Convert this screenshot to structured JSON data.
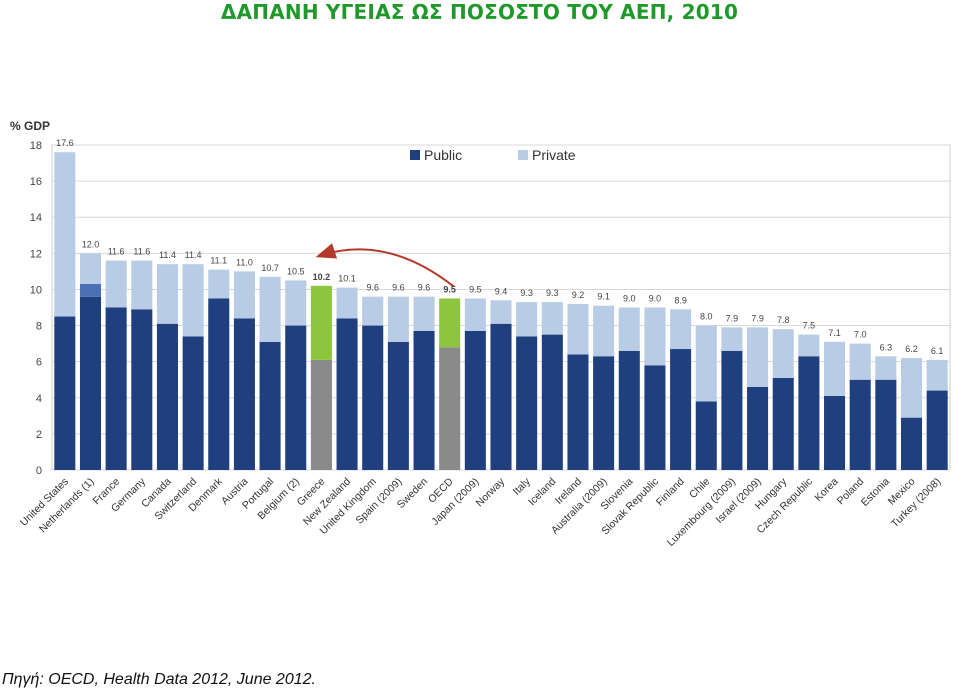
{
  "page": {
    "title": "ΔΑΠΑΝΗ ΥΓΕΙΑΣ ΩΣ ΠΟΣΟΣΤΟ ΤΟΥ ΑΕΠ, 2010",
    "source": "Πηγή: OECD, Health Data 2012, June 2012."
  },
  "colors": {
    "public": "#1f3f7f",
    "private": "#b9cce6",
    "highlight_public": "#8a8a8a",
    "highlight_private": "#8cc63f",
    "netherlands_unallocated": "#4a6fb5",
    "arrow": "#b33a2a",
    "grid": "#d9d9d9"
  },
  "chart_data": {
    "type": "bar",
    "stacked": true,
    "ylabel": "% GDP",
    "ylim": [
      0,
      18
    ],
    "yticks": [
      0,
      2,
      4,
      6,
      8,
      10,
      12,
      14,
      16,
      18
    ],
    "grid": true,
    "legend": {
      "position": "top-center",
      "entries": [
        "Public",
        "Private"
      ]
    },
    "highlighted": [
      "Greece",
      "OECD"
    ],
    "annotation": {
      "type": "arrow",
      "from": "OECD",
      "to": "Greece"
    },
    "categories": [
      "United States",
      "Netherlands (1)",
      "France",
      "Germany",
      "Canada",
      "Switzerland",
      "Denmark",
      "Austria",
      "Portugal",
      "Belgium (2)",
      "Greece",
      "New Zealand",
      "United Kingdom",
      "Spain (2009)",
      "Sweden",
      "OECD",
      "Japan (2009)",
      "Norway",
      "Italy",
      "Iceland",
      "Ireland",
      "Australia (2009)",
      "Slovenia",
      "Slovak Republic",
      "Finland",
      "Chile",
      "Luxembourg (2009)",
      "Israel (2009)",
      "Hungary",
      "Czech Republic",
      "Korea",
      "Poland",
      "Estonia",
      "Mexico",
      "Turkey (2008)"
    ],
    "totals": [
      17.6,
      12.0,
      11.6,
      11.6,
      11.4,
      11.4,
      11.1,
      11.0,
      10.7,
      10.5,
      10.2,
      10.1,
      9.6,
      9.6,
      9.6,
      9.5,
      9.5,
      9.4,
      9.3,
      9.3,
      9.2,
      9.1,
      9.0,
      9.0,
      8.9,
      8.0,
      7.9,
      7.9,
      7.8,
      7.5,
      7.1,
      7.0,
      6.3,
      6.2,
      6.1
    ],
    "total_labels": [
      "17.6",
      "12.0",
      "11.6",
      "11.6",
      "11.4",
      "11.4",
      "11.1",
      "11.0",
      "10.7",
      "10.5",
      "10.2",
      "10.1",
      "9.6",
      "9.6",
      "9.6",
      "9.5",
      "9.5",
      "9.4",
      "9.3",
      "9.3",
      "9.2",
      "9.1",
      "9.0",
      "9.0",
      "8.9",
      "8.0",
      "7.9",
      "7.9",
      "7.8",
      "7.5",
      "7.1",
      "7.0",
      "6.3",
      "6.2",
      "6.1"
    ],
    "series": [
      {
        "name": "Public",
        "values": [
          8.5,
          9.6,
          9.0,
          8.9,
          8.1,
          7.4,
          9.5,
          8.4,
          7.1,
          8.0,
          6.1,
          8.4,
          8.0,
          7.1,
          7.7,
          6.8,
          7.7,
          8.1,
          7.4,
          7.5,
          6.4,
          6.3,
          6.6,
          5.8,
          6.7,
          3.8,
          6.6,
          4.6,
          5.1,
          6.3,
          4.1,
          5.0,
          5.0,
          2.9,
          4.4
        ]
      },
      {
        "name": "Private",
        "values": [
          9.1,
          2.4,
          2.6,
          2.7,
          3.3,
          4.0,
          1.6,
          2.6,
          3.6,
          2.5,
          4.1,
          1.7,
          1.6,
          2.5,
          1.9,
          2.7,
          1.8,
          1.3,
          1.9,
          1.8,
          2.8,
          2.8,
          2.4,
          3.2,
          2.2,
          4.2,
          1.3,
          3.3,
          2.7,
          1.2,
          3.0,
          2.0,
          1.3,
          3.3,
          1.7
        ]
      }
    ],
    "netherlands_unallocated": {
      "category": "Netherlands (1)",
      "from": 9.6,
      "to": 10.3
    }
  }
}
